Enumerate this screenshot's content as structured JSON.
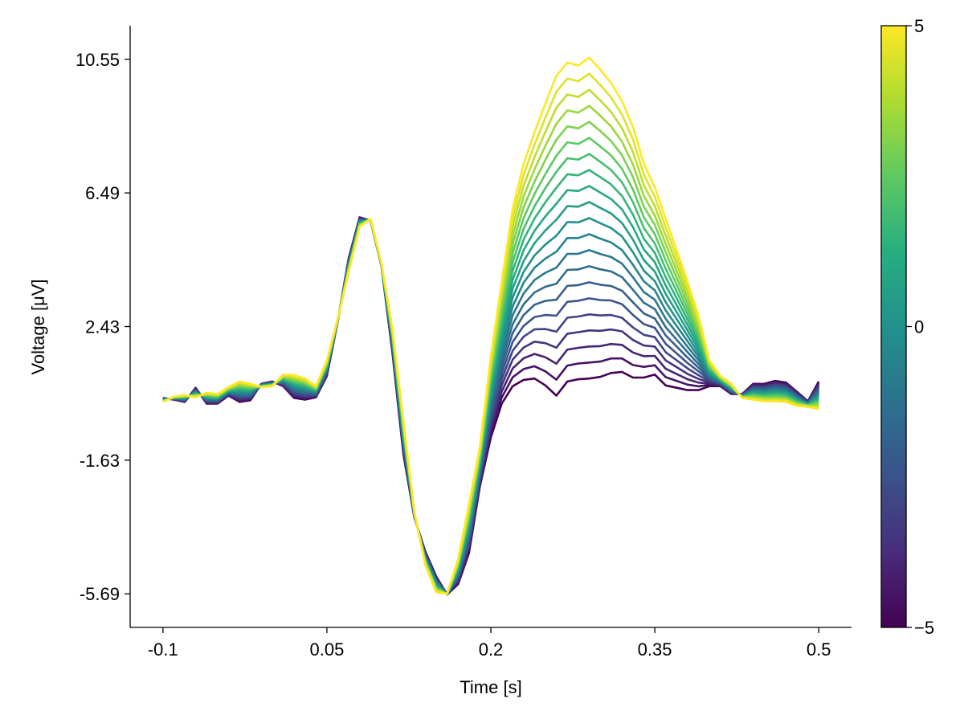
{
  "chart_data": {
    "type": "line",
    "xlabel": "Time [s]",
    "ylabel": "Voltage [μV]",
    "xlim": [
      -0.13,
      0.53
    ],
    "ylim": [
      -6.71,
      11.57
    ],
    "x_ticks": [
      -0.1,
      0.05,
      0.2,
      0.35,
      0.5
    ],
    "x_tick_labels": [
      "-0.1",
      "0.05",
      "0.2",
      "0.35",
      "0.5"
    ],
    "y_ticks": [
      10.55,
      6.49,
      2.43,
      -1.63,
      -5.69
    ],
    "y_tick_labels": [
      "10.55",
      "6.49",
      "2.43",
      "-1.63",
      "-5.69"
    ],
    "grid": false,
    "x": {
      "start": -0.1,
      "stop": 0.5,
      "step": 0.01
    },
    "colormap": "viridis",
    "colorbar": {
      "range": [
        -5,
        5
      ],
      "ticks": [
        5,
        0,
        -5
      ],
      "tick_labels": [
        "5",
        "0",
        "−5"
      ]
    },
    "covariate_values": [
      -5,
      -4.5,
      -4,
      -3.5,
      -3,
      -2.5,
      -2,
      -1.5,
      -1,
      -0.5,
      0,
      0.5,
      1,
      1.5,
      2,
      2.5,
      3,
      3.5,
      4,
      4.5,
      5
    ],
    "series": [
      {
        "covariate": -5,
        "values": [
          0.26,
          0.21,
          0.14,
          0.57,
          0.09,
          0.09,
          0.33,
          0.14,
          0.19,
          0.69,
          0.76,
          0.62,
          0.26,
          0.21,
          0.28,
          0.93,
          2.6,
          4.51,
          5.75,
          5.65,
          4.27,
          1.64,
          -1.46,
          -3.37,
          -4.4,
          -5.16,
          -5.71,
          -5.4,
          -4.45,
          -2.42,
          -0.94,
          0.09,
          0.62,
          0.81,
          0.85,
          0.64,
          0.33,
          0.76,
          0.83,
          0.85,
          0.9,
          1.02,
          1.05,
          0.88,
          0.88,
          0.97,
          0.64,
          0.57,
          0.5,
          0.5,
          0.62,
          0.62,
          0.38,
          0.38,
          0.69,
          0.69,
          0.78,
          0.73,
          0.45,
          0.16,
          0.76
        ]
      },
      {
        "covariate": 5,
        "values": [
          0.14,
          0.3,
          0.35,
          0.28,
          0.42,
          0.38,
          0.59,
          0.76,
          0.69,
          0.59,
          0.62,
          0.97,
          0.95,
          0.85,
          0.62,
          1.4,
          2.67,
          4.1,
          5.46,
          5.7,
          4.34,
          2.36,
          -0.44,
          -3.21,
          -4.81,
          -5.64,
          -5.69,
          -4.64,
          -2.97,
          -1.22,
          1.52,
          3.79,
          6.01,
          7.37,
          8.33,
          9.21,
          10.05,
          10.45,
          10.36,
          10.6,
          10.24,
          9.83,
          9.28,
          8.5,
          7.37,
          6.66,
          5.7,
          4.75,
          3.79,
          2.76,
          1.4,
          0.93,
          0.69,
          0.26,
          0.21,
          0.16,
          0.16,
          0.14,
          0.02,
          -0.01,
          -0.08
        ]
      }
    ]
  }
}
